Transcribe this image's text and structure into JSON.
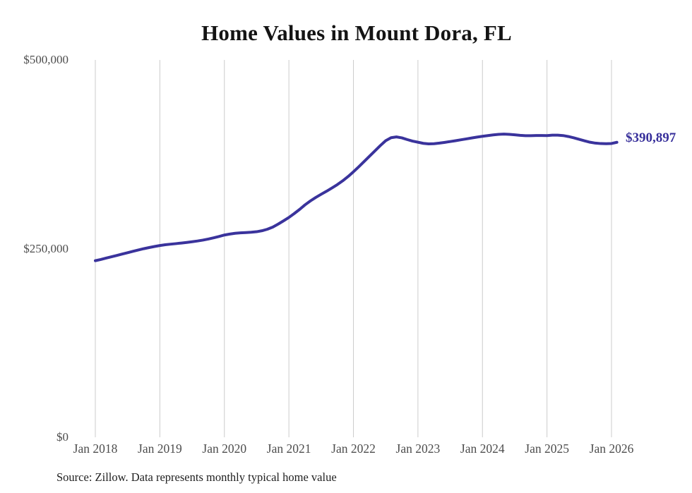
{
  "chart_data": {
    "type": "line",
    "title": "Home Values in Mount Dora, FL",
    "source_note": "Source: Zillow. Data represents monthly typical home value",
    "end_label": "$390,897",
    "legend": "none",
    "grid": "vertical-only",
    "ylim": [
      0,
      500000
    ],
    "y_ticks": [
      {
        "label": "$0",
        "value": 0
      },
      {
        "label": "$250,000",
        "value": 250000
      },
      {
        "label": "$500,000",
        "value": 500000
      }
    ],
    "x_tick_labels": [
      "Jan 2018",
      "Jan 2019",
      "Jan 2020",
      "Jan 2021",
      "Jan 2022",
      "Jan 2023",
      "Jan 2024",
      "Jan 2025",
      "Jan 2026"
    ],
    "x": [
      "2018-01",
      "2018-02",
      "2018-03",
      "2018-04",
      "2018-05",
      "2018-06",
      "2018-07",
      "2018-08",
      "2018-09",
      "2018-10",
      "2018-11",
      "2018-12",
      "2019-01",
      "2019-02",
      "2019-03",
      "2019-04",
      "2019-05",
      "2019-06",
      "2019-07",
      "2019-08",
      "2019-09",
      "2019-10",
      "2019-11",
      "2019-12",
      "2020-01",
      "2020-02",
      "2020-03",
      "2020-04",
      "2020-05",
      "2020-06",
      "2020-07",
      "2020-08",
      "2020-09",
      "2020-10",
      "2020-11",
      "2020-12",
      "2021-01",
      "2021-02",
      "2021-03",
      "2021-04",
      "2021-05",
      "2021-06",
      "2021-07",
      "2021-08",
      "2021-09",
      "2021-10",
      "2021-11",
      "2021-12",
      "2022-01",
      "2022-02",
      "2022-03",
      "2022-04",
      "2022-05",
      "2022-06",
      "2022-07",
      "2022-08",
      "2022-09",
      "2022-10",
      "2022-11",
      "2022-12",
      "2023-01",
      "2023-02",
      "2023-03",
      "2023-04",
      "2023-05",
      "2023-06",
      "2023-07",
      "2023-08",
      "2023-09",
      "2023-10",
      "2023-11",
      "2023-12",
      "2024-01",
      "2024-02",
      "2024-03",
      "2024-04",
      "2024-05",
      "2024-06",
      "2024-07",
      "2024-08",
      "2024-09",
      "2024-10",
      "2024-11",
      "2024-12",
      "2025-01",
      "2025-02",
      "2025-03",
      "2025-04",
      "2025-05",
      "2025-06",
      "2025-07",
      "2025-08",
      "2025-09",
      "2025-10",
      "2025-11",
      "2025-12",
      "2026-01",
      "2026-02"
    ],
    "values": [
      234000,
      235600,
      237400,
      239200,
      241000,
      242800,
      244600,
      246400,
      248200,
      249900,
      251400,
      252800,
      254100,
      255100,
      255900,
      256600,
      257400,
      258200,
      259100,
      260100,
      261300,
      262700,
      264300,
      266100,
      268000,
      269300,
      270300,
      270900,
      271300,
      271700,
      272400,
      273700,
      275700,
      278500,
      282500,
      286800,
      291300,
      296500,
      302000,
      308000,
      313200,
      317800,
      322000,
      326000,
      330300,
      334800,
      339800,
      345500,
      351800,
      358500,
      365500,
      372500,
      379500,
      386500,
      393000,
      397000,
      398000,
      396800,
      394500,
      392500,
      391000,
      389500,
      388800,
      389000,
      389800,
      390800,
      391900,
      393000,
      394200,
      395400,
      396600,
      397800,
      398800,
      399800,
      400700,
      401400,
      401700,
      401400,
      400800,
      400100,
      399700,
      399700,
      399900,
      399900,
      399800,
      400300,
      400400,
      399800,
      398500,
      396800,
      394800,
      392800,
      391000,
      389800,
      389200,
      389000,
      389300,
      390897
    ],
    "colors": {
      "line": "#3a339c",
      "end_label": "#38309b",
      "grid": "#cccccc",
      "tick_text": "#4d4d4d",
      "title_text": "#141414",
      "source_text": "#1f1f1f",
      "background": "#ffffff"
    }
  }
}
